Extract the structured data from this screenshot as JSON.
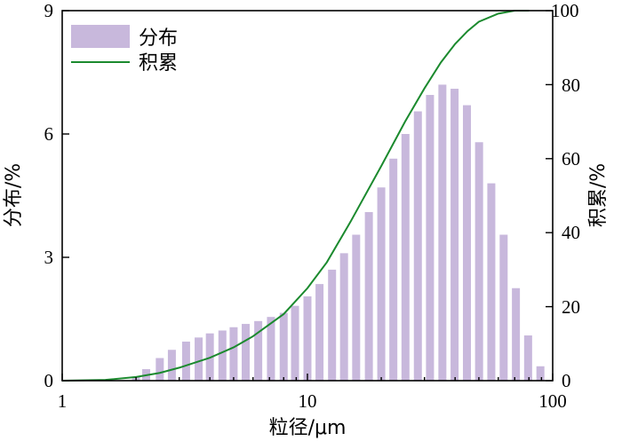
{
  "chart_data": {
    "type": "bar",
    "xlabel": "粒径/μm",
    "ylabel": "分布/%",
    "y2label": "积累/%",
    "xscale": "log",
    "xlim": [
      1,
      100
    ],
    "ylim": [
      0,
      9
    ],
    "y2lim": [
      0,
      100
    ],
    "x_ticks": [
      "1",
      "10",
      "100"
    ],
    "y_ticks": [
      "0",
      "3",
      "6",
      "9"
    ],
    "y2_ticks": [
      "0",
      "20",
      "40",
      "60",
      "80",
      "100"
    ],
    "legend_position": "top-left",
    "grid": false,
    "colors": {
      "distribution": "#c8b8dc",
      "cumulative": "#1b8a2e"
    },
    "series": [
      {
        "name": "分布",
        "type": "bar",
        "x": [
          2.0,
          2.2,
          2.5,
          2.8,
          3.2,
          3.6,
          4.0,
          4.5,
          5.0,
          5.6,
          6.3,
          7.1,
          8.0,
          8.9,
          10.0,
          11.2,
          12.6,
          14.1,
          15.8,
          17.8,
          20.0,
          22.4,
          25.1,
          28.2,
          31.6,
          35.5,
          39.8,
          44.7,
          50.1,
          56.2,
          63.1,
          70.8,
          79.4,
          89.1
        ],
        "values": [
          0.1,
          0.28,
          0.55,
          0.75,
          0.95,
          1.05,
          1.15,
          1.22,
          1.3,
          1.38,
          1.45,
          1.55,
          1.65,
          1.82,
          2.05,
          2.35,
          2.7,
          3.1,
          3.55,
          4.1,
          4.7,
          5.4,
          6.0,
          6.55,
          6.95,
          7.2,
          7.1,
          6.7,
          5.8,
          4.8,
          3.55,
          2.25,
          1.1,
          0.35
        ]
      },
      {
        "name": "积累",
        "type": "line",
        "axis": "right",
        "x": [
          1.0,
          1.5,
          2.0,
          2.5,
          3.0,
          4.0,
          5.0,
          6.0,
          8.0,
          10.0,
          12.0,
          15.0,
          20.0,
          25.0,
          30.0,
          35.0,
          40.0,
          45.0,
          50.0,
          60.0,
          70.0,
          80.0
        ],
        "values": [
          0,
          0.2,
          1.0,
          2.1,
          3.5,
          6.2,
          9.0,
          12.0,
          18.0,
          25.0,
          32.0,
          43.0,
          58.0,
          70.0,
          79.0,
          86.0,
          91.0,
          94.5,
          97.0,
          99.2,
          100,
          100
        ]
      }
    ]
  }
}
